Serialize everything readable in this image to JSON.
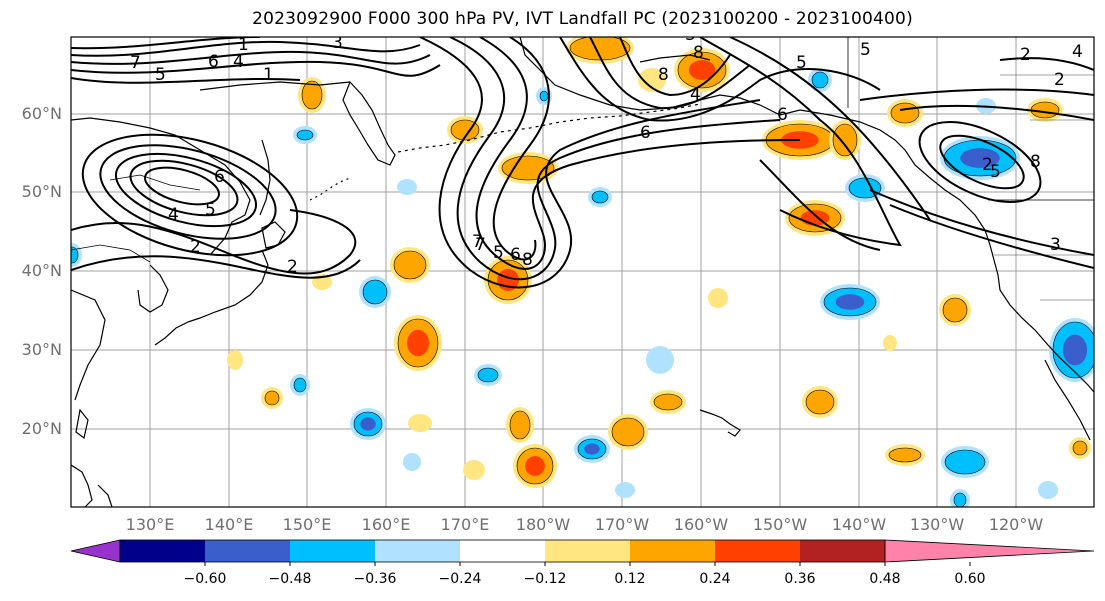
{
  "title": "2023092900 F000 300 hPa PV, IVT Landfall PC (2023100200 - 2023100400)",
  "latitude_labels": [
    "60°N",
    "50°N",
    "40°N",
    "30°N",
    "20°N"
  ],
  "longitude_labels": [
    "130°E",
    "140°E",
    "150°E",
    "160°E",
    "170°E",
    "180°W",
    "170°W",
    "160°W",
    "150°W",
    "140°W",
    "130°W",
    "120°W"
  ],
  "colorbar": {
    "ticks": [
      "-0.60",
      "-0.48",
      "-0.36",
      "-0.24",
      "-0.12",
      "0.12",
      "0.24",
      "0.36",
      "0.48",
      "0.60"
    ],
    "colors": [
      "#9932cc",
      "#00008b",
      "#3a5fcd",
      "#00bfff",
      "#b0e2ff",
      "#ffffff",
      "#ffe680",
      "#ffa500",
      "#ff4000",
      "#b22222",
      "#ff82ab"
    ],
    "extend": "both"
  },
  "colors": {
    "pos_weak": "#ffe680",
    "pos_mid": "#ffa500",
    "pos_strong": "#ff4000",
    "neg_weak": "#b0e2ff",
    "neg_mid": "#00bfff",
    "neg_strong": "#3a5fcd"
  },
  "contour_labels": [
    "7",
    "5",
    "6",
    "4",
    "1",
    "3",
    "2",
    "5",
    "6",
    "4",
    "2",
    "1",
    "7",
    "5",
    "6",
    "8",
    "8",
    "4",
    "3",
    "5",
    "2",
    "6",
    "8",
    "6",
    "5",
    "3",
    "2",
    "2",
    "5",
    "8",
    "4",
    "7"
  ]
}
